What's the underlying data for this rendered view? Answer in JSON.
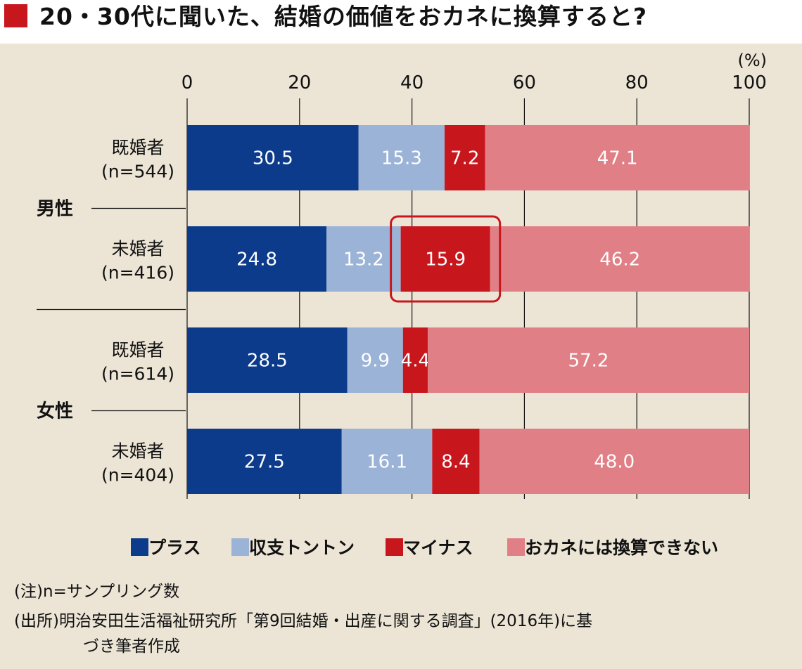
{
  "title": "20・30代に聞いた、結婚の価値をおカネに換算すると?",
  "colors": {
    "title_square": "#c8161d",
    "panel_bg": "#ece5d6",
    "plus": "#0d3b8c",
    "breakeven": "#9bb3d6",
    "minus": "#c8161d",
    "cannot": "#e17f86",
    "highlight_box": "#c8161d"
  },
  "chart_data": {
    "type": "bar",
    "orientation": "horizontal",
    "stacked": true,
    "unit": "(%)",
    "xlim": [
      0,
      100
    ],
    "x_ticks": [
      "0",
      "20",
      "40",
      "60",
      "80",
      "100"
    ],
    "groups": [
      {
        "label": "男性",
        "rows": [
          0,
          1
        ]
      },
      {
        "label": "女性",
        "rows": [
          2,
          3
        ]
      }
    ],
    "categories": [
      {
        "label": "既婚者",
        "n": "(n=544)"
      },
      {
        "label": "未婚者",
        "n": "(n=416)"
      },
      {
        "label": "既婚者",
        "n": "(n=614)"
      },
      {
        "label": "未婚者",
        "n": "(n=404)"
      }
    ],
    "series": [
      {
        "name": "プラス",
        "color": "#0d3b8c",
        "values": [
          30.5,
          24.8,
          28.5,
          27.5
        ],
        "labels": [
          "30.5",
          "24.8",
          "28.5",
          "27.5"
        ]
      },
      {
        "name": "収支トントン",
        "color": "#9bb3d6",
        "values": [
          15.3,
          13.2,
          9.9,
          16.1
        ],
        "labels": [
          "15.3",
          "13.2",
          "9.9",
          "16.1"
        ]
      },
      {
        "name": "マイナス",
        "color": "#c8161d",
        "values": [
          7.2,
          15.9,
          4.4,
          8.4
        ],
        "labels": [
          "7.2",
          "15.9",
          "4.4",
          "8.4"
        ]
      },
      {
        "name": "おカネには換算できない",
        "color": "#e17f86",
        "values": [
          47.1,
          46.2,
          57.2,
          48.0
        ],
        "labels": [
          "47.1",
          "46.2",
          "57.2",
          "48.0"
        ]
      }
    ],
    "highlight": {
      "row": 1,
      "series": 2
    },
    "grid": true,
    "legend_position": "bottom"
  },
  "notes": {
    "line1": "(注)n=サンプリング数",
    "line2": "(出所)明治安田生活福祉研究所「第9回結婚・出産に関する調査」(2016年)に基",
    "line3": "づき筆者作成"
  }
}
